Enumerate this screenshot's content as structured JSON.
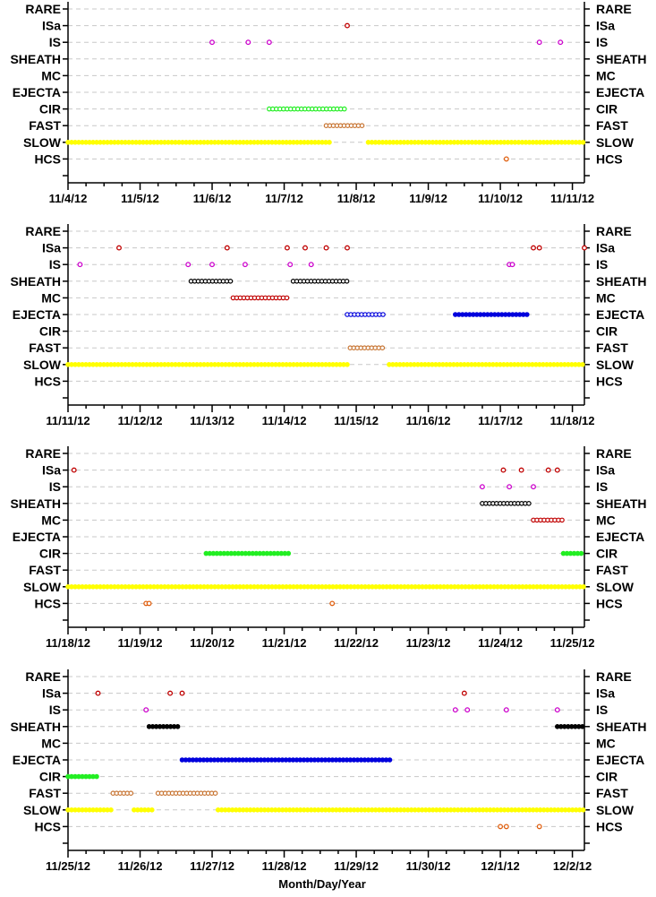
{
  "chart_data": {
    "type": "scatter",
    "xlabel": "Month/Day/Year",
    "categories": [
      "RARE",
      "ISa",
      "IS",
      "SHEATH",
      "MC",
      "EJECTA",
      "CIR",
      "FAST",
      "SLOW",
      "HCS"
    ],
    "colors": {
      "ISa": "#c00000",
      "IS": "#cc00cc",
      "SHEATH": "#000000",
      "MC": "#c00000",
      "EJECTA": "#0000dd",
      "CIR": "#22ee22",
      "FAST": "#c87533",
      "SLOW": "#ffff00",
      "HCS": "#e06010"
    },
    "panels": [
      {
        "xlim": [
          "2012-11-04",
          "2012-11-11 04:00"
        ],
        "ticks": [
          "11/4/12",
          "11/5/12",
          "11/6/12",
          "11/7/12",
          "11/8/12",
          "11/9/12",
          "11/10/12",
          "11/11/12"
        ],
        "points": [
          {
            "category": "ISa",
            "x": "2012-11-07 21:00"
          },
          {
            "category": "IS",
            "x": "2012-11-06"
          },
          {
            "category": "IS",
            "x": "2012-11-06 12:00"
          },
          {
            "category": "IS",
            "x": "2012-11-06 19:00"
          },
          {
            "category": "IS",
            "x": "2012-11-10 13:00"
          },
          {
            "category": "IS",
            "x": "2012-11-10 20:00"
          },
          {
            "category": "HCS",
            "x": "2012-11-10 02:00"
          }
        ],
        "segments": [
          {
            "category": "CIR",
            "x0": "2012-11-06 19:00",
            "x1": "2012-11-07 21:00"
          },
          {
            "category": "FAST",
            "x0": "2012-11-07 14:00",
            "x1": "2012-11-08 03:00"
          },
          {
            "category": "SLOW",
            "x0": "2012-11-04",
            "x1": "2012-11-07 16:00",
            "dense": true
          },
          {
            "category": "SLOW",
            "x0": "2012-11-08 04:00",
            "x1": "2012-11-11 04:00",
            "dense": true
          }
        ]
      },
      {
        "xlim": [
          "2012-11-11",
          "2012-11-18 04:00"
        ],
        "ticks": [
          "11/11/12",
          "11/12/12",
          "11/13/12",
          "11/14/12",
          "11/15/12",
          "11/16/12",
          "11/17/12",
          "11/18/12"
        ],
        "points": [
          {
            "category": "ISa",
            "x": "2012-11-11 17:00"
          },
          {
            "category": "ISa",
            "x": "2012-11-13 05:00"
          },
          {
            "category": "ISa",
            "x": "2012-11-14 01:00"
          },
          {
            "category": "ISa",
            "x": "2012-11-14 07:00"
          },
          {
            "category": "ISa",
            "x": "2012-11-14 14:00"
          },
          {
            "category": "ISa",
            "x": "2012-11-14 21:00"
          },
          {
            "category": "ISa",
            "x": "2012-11-17 11:00"
          },
          {
            "category": "ISa",
            "x": "2012-11-17 13:00"
          },
          {
            "category": "ISa",
            "x": "2012-11-18 04:00"
          },
          {
            "category": "IS",
            "x": "2012-11-11 04:00"
          },
          {
            "category": "IS",
            "x": "2012-11-12 16:00"
          },
          {
            "category": "IS",
            "x": "2012-11-13"
          },
          {
            "category": "IS",
            "x": "2012-11-13 11:00"
          },
          {
            "category": "IS",
            "x": "2012-11-14 02:00"
          },
          {
            "category": "IS",
            "x": "2012-11-14 09:00"
          },
          {
            "category": "IS",
            "x": "2012-11-17 03:00"
          },
          {
            "category": "IS",
            "x": "2012-11-17 04:00"
          }
        ],
        "segments": [
          {
            "category": "SHEATH",
            "x0": "2012-11-12 17:00",
            "x1": "2012-11-13 07:00"
          },
          {
            "category": "SHEATH",
            "x0": "2012-11-14 03:00",
            "x1": "2012-11-14 21:00"
          },
          {
            "category": "MC",
            "x0": "2012-11-13 07:00",
            "x1": "2012-11-14 01:00"
          },
          {
            "category": "EJECTA",
            "x0": "2012-11-14 21:00",
            "x1": "2012-11-15 09:00"
          },
          {
            "category": "EJECTA",
            "x0": "2012-11-16 09:00",
            "x1": "2012-11-17 09:00",
            "dense": true
          },
          {
            "category": "FAST",
            "x0": "2012-11-14 22:00",
            "x1": "2012-11-15 09:00"
          },
          {
            "category": "SLOW",
            "x0": "2012-11-11",
            "x1": "2012-11-14 22:00",
            "dense": true
          },
          {
            "category": "SLOW",
            "x0": "2012-11-15 11:00",
            "x1": "2012-11-18 04:00",
            "dense": true
          }
        ]
      },
      {
        "xlim": [
          "2012-11-18",
          "2012-11-25 04:00"
        ],
        "ticks": [
          "11/18/12",
          "11/19/12",
          "11/20/12",
          "11/21/12",
          "11/22/12",
          "11/23/12",
          "11/24/12",
          "11/25/12"
        ],
        "points": [
          {
            "category": "ISa",
            "x": "2012-11-18 02:00"
          },
          {
            "category": "ISa",
            "x": "2012-11-24 01:00"
          },
          {
            "category": "ISa",
            "x": "2012-11-24 07:00"
          },
          {
            "category": "ISa",
            "x": "2012-11-24 16:00"
          },
          {
            "category": "ISa",
            "x": "2012-11-24 19:00"
          },
          {
            "category": "IS",
            "x": "2012-11-23 18:00"
          },
          {
            "category": "IS",
            "x": "2012-11-24 03:00"
          },
          {
            "category": "IS",
            "x": "2012-11-24 11:00"
          },
          {
            "category": "HCS",
            "x": "2012-11-19 02:00"
          },
          {
            "category": "HCS",
            "x": "2012-11-19 03:00"
          },
          {
            "category": "HCS",
            "x": "2012-11-21 16:00"
          }
        ],
        "segments": [
          {
            "category": "SHEATH",
            "x0": "2012-11-23 18:00",
            "x1": "2012-11-24 10:00"
          },
          {
            "category": "MC",
            "x0": "2012-11-24 11:00",
            "x1": "2012-11-24 21:00"
          },
          {
            "category": "CIR",
            "x0": "2012-11-19 22:00",
            "x1": "2012-11-21 02:00",
            "dense": true
          },
          {
            "category": "CIR",
            "x0": "2012-11-24 21:00",
            "x1": "2012-11-25 04:00",
            "dense": true
          },
          {
            "category": "SLOW",
            "x0": "2012-11-18",
            "x1": "2012-11-25 04:00",
            "dense": true
          }
        ]
      },
      {
        "xlim": [
          "2012-11-25",
          "2012-12-02 04:00"
        ],
        "ticks": [
          "11/25/12",
          "11/26/12",
          "11/27/12",
          "11/28/12",
          "11/29/12",
          "11/30/12",
          "12/1/12",
          "12/2/12"
        ],
        "points": [
          {
            "category": "ISa",
            "x": "2012-11-25 10:00"
          },
          {
            "category": "ISa",
            "x": "2012-11-26 10:00"
          },
          {
            "category": "ISa",
            "x": "2012-11-26 14:00"
          },
          {
            "category": "ISa",
            "x": "2012-11-30 12:00"
          },
          {
            "category": "IS",
            "x": "2012-11-26 02:00"
          },
          {
            "category": "IS",
            "x": "2012-11-30 09:00"
          },
          {
            "category": "IS",
            "x": "2012-11-30 13:00"
          },
          {
            "category": "IS",
            "x": "2012-12-01 02:00"
          },
          {
            "category": "IS",
            "x": "2012-12-01 19:00"
          },
          {
            "category": "HCS",
            "x": "2012-12-01"
          },
          {
            "category": "HCS",
            "x": "2012-12-01 02:00"
          },
          {
            "category": "HCS",
            "x": "2012-12-01 13:00"
          }
        ],
        "segments": [
          {
            "category": "SHEATH",
            "x0": "2012-11-26 03:00",
            "x1": "2012-11-26 13:00",
            "dense": true
          },
          {
            "category": "SHEATH",
            "x0": "2012-12-01 19:00",
            "x1": "2012-12-02 04:00",
            "dense": true
          },
          {
            "category": "EJECTA",
            "x0": "2012-11-26 14:00",
            "x1": "2012-11-29 12:00",
            "dense": true
          },
          {
            "category": "CIR",
            "x0": "2012-11-25",
            "x1": "2012-11-25 10:00",
            "dense": true
          },
          {
            "category": "FAST",
            "x0": "2012-11-25 15:00",
            "x1": "2012-11-25 22:00"
          },
          {
            "category": "FAST",
            "x0": "2012-11-26 06:00",
            "x1": "2012-11-27 02:00"
          },
          {
            "category": "SLOW",
            "x0": "2012-11-25",
            "x1": "2012-11-25 15:00",
            "dense": true
          },
          {
            "category": "SLOW",
            "x0": "2012-11-25 22:00",
            "x1": "2012-11-26 05:00",
            "dense": true
          },
          {
            "category": "SLOW",
            "x0": "2012-11-27 02:00",
            "x1": "2012-12-02 04:00",
            "dense": true
          }
        ]
      }
    ]
  }
}
